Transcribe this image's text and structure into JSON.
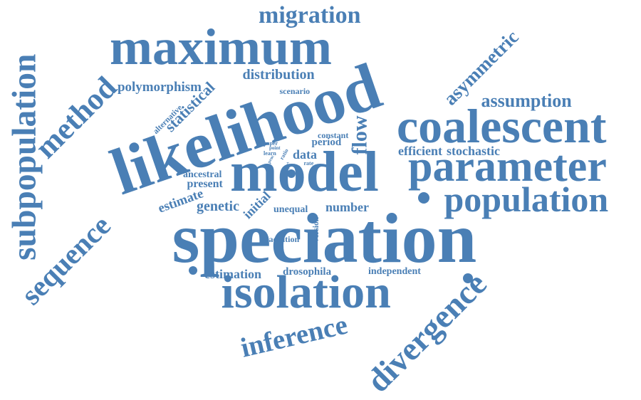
{
  "color": "#4a7fb5",
  "words": {
    "maximum": "maximum",
    "likelihood": "likelihood",
    "speciation": "speciation",
    "model": "model",
    "coalescent": "coalescent",
    "parameter": "parameter",
    "isolation": "isolation",
    "population": "population",
    "divergence": "divergence",
    "inference": "inference",
    "subpopulation": "subpopulation",
    "sequence": "sequence",
    "method": "method",
    "migration": "migration",
    "asymmetric": "asymmetric",
    "assumption": "assumption",
    "flow": "flow",
    "distribution": "distribution",
    "polymorphism": "polymorphism",
    "statistical": "statistical",
    "alternative": "alternative",
    "scenario": "scenario",
    "constant": "constant",
    "period": "period",
    "data": "data",
    "efficient": "efficient",
    "stochastic": "stochastic",
    "paper": "paper",
    "point": "point",
    "learn": "learn",
    "ratio": "ratio",
    "proc": "proc",
    "rate": "rate",
    "part": "part",
    "ancestral": "ancestral",
    "present": "present",
    "estimate": "estimate",
    "genetic": "genetic",
    "initial": "initial",
    "unequal": "unequal",
    "number": "number",
    "version": "version",
    "addition": "addition",
    "estimation": "estimation",
    "drosophila": "drosophila",
    "independent": "independent"
  }
}
